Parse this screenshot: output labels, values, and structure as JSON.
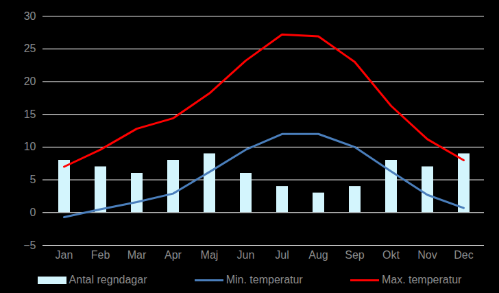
{
  "chart_data": {
    "type": "bar",
    "categories": [
      "Jan",
      "Feb",
      "Mar",
      "Apr",
      "Maj",
      "Jun",
      "Jul",
      "Aug",
      "Sep",
      "Okt",
      "Nov",
      "Dec"
    ],
    "series": [
      {
        "name": "Antal regndagar",
        "type": "bar",
        "color": "#d3f5fd",
        "values": [
          8,
          7,
          6,
          8,
          9,
          6,
          4,
          3,
          4,
          8,
          7,
          9
        ]
      },
      {
        "name": "Min. temperatur",
        "type": "line",
        "color": "#4a7ebb",
        "values": [
          -0.7,
          0.5,
          1.6,
          2.9,
          6.2,
          9.6,
          12,
          12,
          10,
          6.3,
          2.7,
          0.7
        ]
      },
      {
        "name": "Max. temperatur",
        "type": "line",
        "color": "#ff0000",
        "values": [
          7,
          9.6,
          12.8,
          14.4,
          18.2,
          23.2,
          27.2,
          26.9,
          23,
          16.3,
          11.2,
          8
        ]
      }
    ],
    "ylim": [
      -5,
      30
    ],
    "yticks": [
      -5,
      0,
      5,
      10,
      15,
      20,
      25,
      30
    ],
    "grid": true,
    "legend": "bottom"
  }
}
